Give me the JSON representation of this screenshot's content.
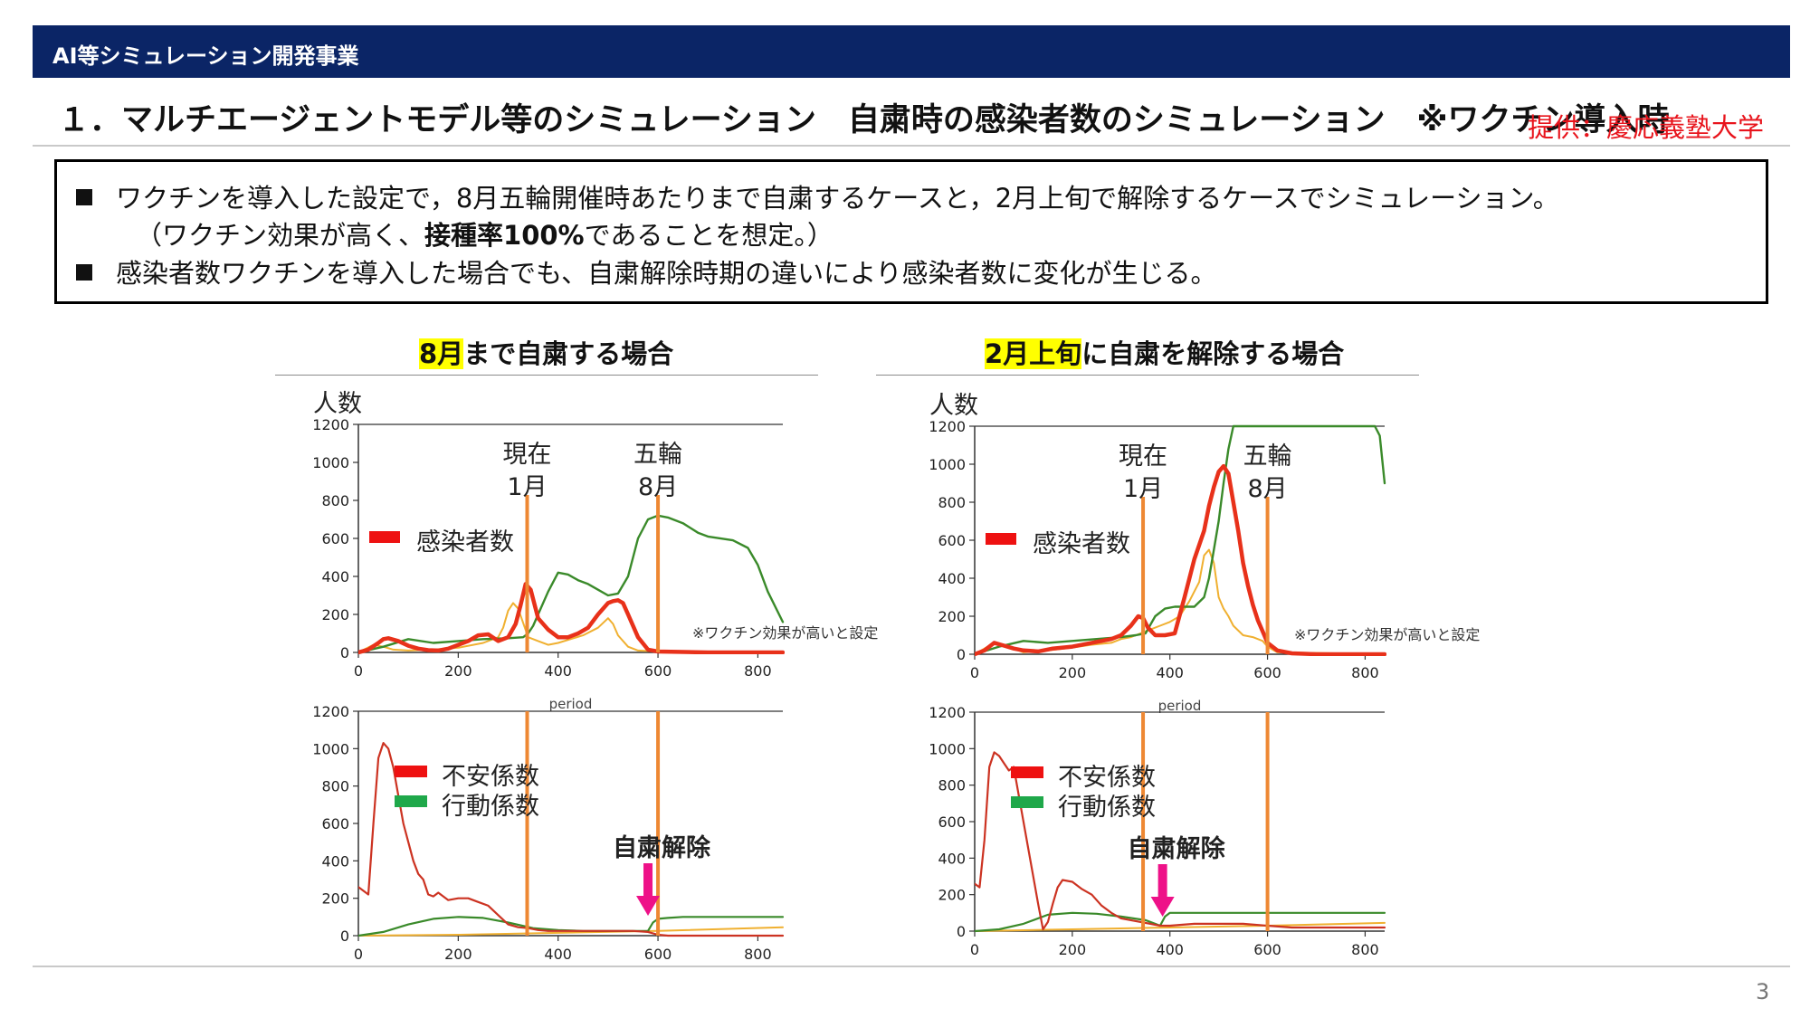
{
  "header": {
    "label": "AI等シミュレーション開発事業"
  },
  "title": "１．マルチエージェントモデル等のシミュレーション　自粛時の感染者数のシミュレーション　※ワクチン導入時",
  "credit": "提供：慶応義塾大学",
  "summary": {
    "line1": "ワクチンを導入した設定で，8月五輪開催時あたりまで自粛するケースと，2月上旬で解除するケースでシミュレーション。",
    "line2_pre": "（ワクチン効果が高く、",
    "line2_bold": "接種率100%",
    "line2_post": "であることを想定。）",
    "line3": "感染者数ワクチンを導入した場合でも、自粛解除時期の違いにより感染者数に変化が生じる。"
  },
  "left": {
    "title_hl": "8月",
    "title_rest": "まで自粛する場合"
  },
  "right": {
    "title_hl": "2月上旬",
    "title_rest": "に自粛を解除する場合"
  },
  "page_number": "3",
  "colors": {
    "infected": "#e8311a",
    "orange_line": "#ee8833",
    "green": "#3a8a2a",
    "yellow": "#f0b030",
    "anxiety_legend": "#ee1111",
    "behavior_legend": "#1fa84a",
    "arrow": "#ee1188",
    "header": "#0b2566"
  },
  "chart_data": [
    {
      "id": "left-top",
      "type": "line",
      "ylabel": "人数",
      "xlabel": "period",
      "xlim": [
        0,
        850
      ],
      "ylim": [
        0,
        1200
      ],
      "xticks": [
        0,
        200,
        400,
        600,
        800
      ],
      "yticks": [
        0,
        200,
        400,
        600,
        800,
        1000,
        1200
      ],
      "legend": {
        "label": "感染者数",
        "placement": "middle-left"
      },
      "markers": [
        {
          "x": 338,
          "label1": "現在",
          "label2": "1月"
        },
        {
          "x": 600,
          "label1": "五輪",
          "label2": "8月"
        }
      ],
      "note": "※ワクチン効果が高いと設定",
      "series": [
        {
          "name": "感染者数",
          "role": "infected",
          "x": [
            0,
            20,
            40,
            50,
            60,
            80,
            100,
            120,
            140,
            160,
            180,
            200,
            220,
            240,
            260,
            280,
            300,
            315,
            325,
            335,
            345,
            360,
            380,
            400,
            420,
            440,
            460,
            480,
            500,
            510,
            520,
            530,
            540,
            560,
            580,
            600,
            700,
            850
          ],
          "y": [
            0,
            15,
            50,
            70,
            75,
            60,
            35,
            20,
            12,
            10,
            20,
            40,
            60,
            90,
            95,
            60,
            80,
            150,
            250,
            360,
            330,
            180,
            120,
            80,
            80,
            100,
            130,
            200,
            260,
            270,
            275,
            260,
            200,
            80,
            15,
            5,
            0,
            0
          ]
        },
        {
          "name": "",
          "role": "yellow",
          "x": [
            0,
            30,
            50,
            70,
            100,
            150,
            200,
            250,
            280,
            290,
            300,
            310,
            320,
            340,
            360,
            380,
            400,
            450,
            480,
            500,
            510,
            520,
            540,
            560,
            600,
            850
          ],
          "y": [
            0,
            40,
            30,
            15,
            10,
            15,
            25,
            50,
            80,
            130,
            220,
            260,
            230,
            80,
            60,
            40,
            50,
            90,
            130,
            180,
            150,
            90,
            30,
            10,
            5,
            0
          ]
        },
        {
          "name": "",
          "role": "green",
          "x": [
            0,
            50,
            100,
            150,
            200,
            250,
            300,
            330,
            340,
            350,
            360,
            380,
            400,
            420,
            440,
            460,
            480,
            500,
            520,
            540,
            560,
            580,
            600,
            620,
            650,
            680,
            700,
            750,
            780,
            800,
            820,
            850
          ],
          "y": [
            0,
            30,
            70,
            50,
            60,
            70,
            75,
            80,
            100,
            140,
            200,
            320,
            420,
            410,
            380,
            360,
            330,
            300,
            310,
            400,
            600,
            700,
            720,
            710,
            680,
            630,
            610,
            590,
            550,
            460,
            320,
            160
          ]
        }
      ]
    },
    {
      "id": "left-bottom",
      "type": "line",
      "xlim": [
        0,
        850
      ],
      "ylim": [
        0,
        1200
      ],
      "xticks": [
        0,
        200,
        400,
        600,
        800
      ],
      "yticks": [
        0,
        200,
        400,
        600,
        800,
        1000,
        1200
      ],
      "legend": [
        {
          "label": "不安係数",
          "role": "anxiety"
        },
        {
          "label": "行動係数",
          "role": "behavior"
        }
      ],
      "markers": [
        {
          "x": 338
        },
        {
          "x": 600
        }
      ],
      "annotation": {
        "label": "自粛解除",
        "x": 580
      },
      "series": [
        {
          "name": "不安係数",
          "role": "anxiety",
          "x": [
            0,
            10,
            20,
            30,
            40,
            50,
            60,
            70,
            80,
            90,
            100,
            110,
            120,
            130,
            140,
            150,
            160,
            180,
            200,
            220,
            240,
            260,
            280,
            300,
            320,
            340,
            360,
            380,
            400,
            450,
            500,
            550,
            580,
            600,
            620,
            850
          ],
          "y": [
            260,
            240,
            220,
            600,
            950,
            1030,
            1000,
            900,
            750,
            600,
            500,
            400,
            330,
            300,
            220,
            210,
            230,
            190,
            200,
            200,
            180,
            160,
            110,
            60,
            45,
            40,
            30,
            25,
            25,
            25,
            25,
            25,
            20,
            5,
            0,
            0
          ]
        },
        {
          "name": "行動係数",
          "role": "behavior",
          "x": [
            0,
            50,
            100,
            150,
            200,
            250,
            300,
            350,
            400,
            450,
            500,
            550,
            580,
            590,
            600,
            620,
            650,
            700,
            800,
            850
          ],
          "y": [
            0,
            20,
            60,
            90,
            100,
            95,
            70,
            40,
            30,
            25,
            25,
            25,
            25,
            70,
            90,
            95,
            100,
            100,
            100,
            100
          ]
        },
        {
          "name": "",
          "role": "yellow",
          "x": [
            0,
            200,
            400,
            600,
            850
          ],
          "y": [
            0,
            5,
            15,
            25,
            45
          ]
        }
      ]
    },
    {
      "id": "right-top",
      "type": "line",
      "ylabel": "人数",
      "xlabel": "period",
      "xlim": [
        0,
        840
      ],
      "ylim": [
        0,
        1200
      ],
      "xticks": [
        0,
        200,
        400,
        600,
        800
      ],
      "yticks": [
        0,
        200,
        400,
        600,
        800,
        1000,
        1200
      ],
      "legend": {
        "label": "感染者数",
        "placement": "middle-left"
      },
      "markers": [
        {
          "x": 345,
          "label1": "現在",
          "label2": "1月"
        },
        {
          "x": 600,
          "label1": "五輪",
          "label2": "8月"
        }
      ],
      "note": "※ワクチン効果が高いと設定",
      "series": [
        {
          "name": "感染者数",
          "role": "infected",
          "x": [
            0,
            20,
            40,
            60,
            80,
            100,
            130,
            160,
            200,
            240,
            280,
            300,
            320,
            335,
            345,
            355,
            370,
            390,
            410,
            430,
            450,
            470,
            480,
            490,
            500,
            510,
            520,
            530,
            540,
            550,
            560,
            570,
            580,
            590,
            600,
            620,
            650,
            700,
            840
          ],
          "y": [
            0,
            20,
            60,
            45,
            30,
            20,
            15,
            30,
            40,
            60,
            80,
            100,
            150,
            200,
            190,
            140,
            100,
            100,
            110,
            300,
            500,
            650,
            780,
            880,
            960,
            990,
            950,
            800,
            650,
            480,
            360,
            260,
            180,
            120,
            60,
            20,
            5,
            0,
            0
          ]
        },
        {
          "name": "",
          "role": "yellow",
          "x": [
            0,
            40,
            60,
            80,
            100,
            150,
            200,
            240,
            280,
            300,
            320,
            340,
            360,
            380,
            400,
            420,
            440,
            460,
            470,
            480,
            490,
            500,
            510,
            520,
            530,
            550,
            570,
            590,
            600,
            620,
            840
          ],
          "y": [
            0,
            60,
            50,
            30,
            10,
            20,
            35,
            50,
            60,
            80,
            90,
            110,
            130,
            150,
            170,
            200,
            280,
            380,
            520,
            550,
            480,
            300,
            240,
            200,
            150,
            100,
            90,
            70,
            40,
            10,
            0
          ]
        },
        {
          "name": "",
          "role": "green",
          "x": [
            0,
            50,
            100,
            150,
            200,
            250,
            300,
            330,
            350,
            370,
            390,
            410,
            430,
            450,
            470,
            480,
            490,
            500,
            510,
            520,
            530,
            540,
            550,
            560,
            570,
            580,
            590,
            600,
            610,
            620,
            630,
            640,
            650,
            660,
            670,
            680,
            700,
            760,
            800,
            820,
            830,
            840
          ],
          "y": [
            0,
            40,
            70,
            60,
            70,
            80,
            90,
            100,
            110,
            200,
            240,
            250,
            250,
            250,
            300,
            400,
            550,
            700,
            900,
            1080,
            1200,
            1200,
            1200,
            1200,
            1200,
            1200,
            1200,
            1200,
            1200,
            1200,
            1200,
            1200,
            1200,
            1200,
            1200,
            1200,
            1200,
            1200,
            1200,
            1200,
            1150,
            900
          ]
        }
      ]
    },
    {
      "id": "right-bottom",
      "type": "line",
      "xlim": [
        0,
        840
      ],
      "ylim": [
        0,
        1200
      ],
      "xticks": [
        0,
        200,
        400,
        600,
        800
      ],
      "yticks": [
        0,
        200,
        400,
        600,
        800,
        1000,
        1200
      ],
      "legend": [
        {
          "label": "不安係数",
          "role": "anxiety"
        },
        {
          "label": "行動係数",
          "role": "behavior"
        }
      ],
      "markers": [
        {
          "x": 345
        },
        {
          "x": 600
        }
      ],
      "annotation": {
        "label": "自粛解除",
        "x": 385
      },
      "series": [
        {
          "name": "不安係数",
          "role": "anxiety",
          "x": [
            0,
            10,
            20,
            30,
            40,
            50,
            60,
            70,
            80,
            90,
            100,
            110,
            120,
            130,
            140,
            150,
            160,
            170,
            180,
            200,
            220,
            240,
            260,
            280,
            300,
            320,
            340,
            360,
            380,
            400,
            450,
            500,
            550,
            600,
            650,
            700,
            840
          ],
          "y": [
            260,
            240,
            500,
            900,
            980,
            960,
            920,
            880,
            900,
            750,
            600,
            450,
            300,
            150,
            10,
            50,
            150,
            240,
            280,
            270,
            230,
            200,
            140,
            100,
            70,
            60,
            50,
            40,
            30,
            30,
            40,
            40,
            40,
            30,
            20,
            20,
            20
          ]
        },
        {
          "name": "行動係数",
          "role": "behavior",
          "x": [
            0,
            50,
            100,
            150,
            200,
            250,
            300,
            350,
            370,
            380,
            390,
            400,
            420,
            500,
            600,
            700,
            840
          ],
          "y": [
            0,
            10,
            40,
            90,
            100,
            95,
            80,
            60,
            40,
            30,
            80,
            100,
            100,
            100,
            100,
            100,
            100
          ]
        },
        {
          "name": "",
          "role": "yellow",
          "x": [
            0,
            200,
            400,
            600,
            840
          ],
          "y": [
            0,
            10,
            20,
            30,
            45
          ]
        }
      ]
    }
  ]
}
